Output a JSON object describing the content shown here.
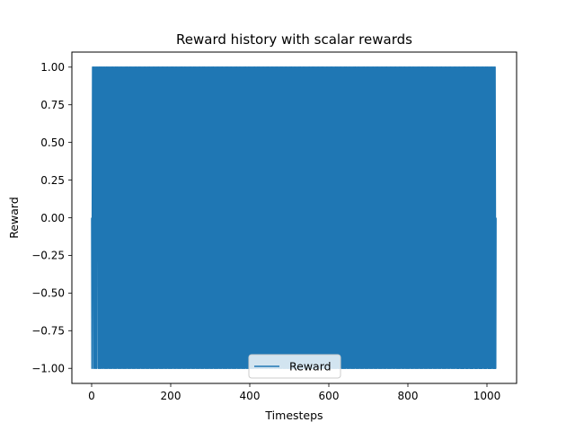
{
  "chart_data": {
    "type": "line",
    "title": "Reward history with scalar rewards",
    "xlabel": "Timesteps",
    "ylabel": "Reward",
    "xlim": [
      -50,
      1075
    ],
    "ylim": [
      -1.1,
      1.1
    ],
    "xticks": [
      0,
      200,
      400,
      600,
      800,
      1000
    ],
    "xtick_labels": [
      "0",
      "200",
      "400",
      "600",
      "800",
      "1000"
    ],
    "yticks": [
      -1.0,
      -0.75,
      -0.5,
      -0.25,
      0.0,
      0.25,
      0.5,
      0.75,
      1.0
    ],
    "ytick_labels": [
      "−1.00",
      "−0.75",
      "−0.50",
      "−0.25",
      "0.00",
      "0.25",
      "0.50",
      "0.75",
      "1.00"
    ],
    "grid": false,
    "legend": "lower center",
    "series": [
      {
        "name": "Reward",
        "color": "#1f77b4",
        "x_start": 0,
        "x_end": 1023,
        "values": [
          0,
          -1,
          0,
          1,
          0,
          1,
          -1,
          0,
          1,
          -1,
          0,
          1,
          0,
          -1,
          1,
          0,
          -1,
          1,
          0,
          0,
          1,
          -1,
          0,
          1,
          -1,
          1,
          0,
          -1,
          1,
          0,
          -1,
          1,
          0,
          1,
          -1,
          0,
          1,
          -1,
          0,
          1,
          1,
          -1,
          0,
          1,
          -1,
          0,
          1,
          -1,
          1,
          0,
          -1,
          1,
          0,
          1,
          -1,
          0,
          1,
          -1,
          0,
          1,
          -1,
          0,
          1,
          -1,
          1,
          0,
          -1,
          1,
          0,
          1,
          -1,
          0,
          1,
          -1,
          0,
          1,
          -1,
          1,
          0,
          -1,
          1,
          0,
          1,
          -1,
          0,
          1,
          -1,
          0,
          1,
          -1,
          0,
          1,
          -1,
          1,
          0,
          -1,
          1,
          0,
          1,
          -1,
          0,
          1,
          -1,
          0,
          1,
          -1,
          0,
          1,
          -1,
          1,
          0,
          -1,
          1,
          0,
          1,
          -1,
          0,
          1,
          -1,
          0,
          1,
          -1,
          1,
          0,
          -1,
          1,
          0,
          1,
          -1,
          0,
          1,
          -1,
          0,
          1,
          -1,
          0,
          1,
          -1,
          1,
          0,
          -1,
          1,
          0,
          1,
          -1,
          0,
          1,
          -1,
          0,
          1,
          -1,
          1,
          0,
          -1,
          1,
          0,
          1,
          -1,
          0,
          1,
          -1,
          0,
          1,
          -1,
          0,
          1,
          -1,
          1,
          0,
          -1,
          1,
          0,
          1,
          -1,
          0,
          1,
          -1,
          0,
          1,
          -1,
          1,
          0,
          -1,
          1,
          0,
          1,
          -1,
          0,
          1,
          -1,
          0,
          1,
          -1,
          0,
          1,
          -1,
          1,
          0,
          -1,
          1,
          0,
          1,
          -1,
          0,
          1,
          -1,
          0,
          1,
          -1,
          1,
          0,
          -1,
          1,
          0,
          1,
          -1,
          0,
          1,
          -1,
          0,
          1,
          -1,
          0,
          1,
          -1,
          1,
          0,
          -1,
          1,
          0,
          1,
          -1,
          0,
          1,
          -1,
          0,
          1,
          -1,
          1,
          0,
          -1,
          1,
          0,
          1,
          -1,
          0,
          1,
          -1,
          0,
          1,
          -1,
          0,
          1,
          -1,
          1,
          0,
          -1,
          1,
          0,
          1,
          -1,
          0,
          1,
          -1,
          0,
          1,
          -1,
          1,
          0,
          -1,
          1,
          0,
          1,
          -1,
          0,
          1,
          -1,
          0,
          1,
          -1,
          0,
          1,
          -1,
          1,
          0,
          -1,
          1,
          0,
          1,
          -1,
          0,
          1,
          -1,
          0,
          1,
          -1,
          1,
          0,
          -1,
          1,
          0,
          1,
          -1,
          0,
          1,
          -1,
          0,
          1,
          -1,
          0,
          1,
          -1,
          1,
          0,
          -1,
          1,
          0,
          1,
          -1,
          0,
          1,
          -1,
          0,
          1,
          -1,
          1,
          0,
          -1,
          1,
          0,
          1,
          -1,
          0,
          1,
          -1,
          0,
          1,
          -1,
          0,
          1,
          -1,
          1,
          0,
          -1,
          1,
          0,
          1,
          -1,
          0,
          1,
          -1,
          0,
          1,
          -1,
          1,
          0,
          -1,
          1,
          0,
          1,
          -1,
          0,
          1,
          -1,
          0,
          1,
          -1,
          0,
          1,
          -1,
          1,
          0,
          -1,
          1,
          0,
          1,
          -1,
          0,
          1,
          -1,
          0,
          1,
          -1,
          1,
          0,
          -1,
          1,
          0,
          1,
          -1,
          0,
          1,
          -1,
          0,
          1,
          -1,
          0,
          1,
          -1,
          1,
          0,
          -1,
          1,
          0,
          1,
          -1,
          0,
          1,
          -1,
          0,
          1,
          -1,
          1,
          0,
          -1,
          1,
          0,
          1,
          -1,
          0,
          1,
          -1,
          0,
          1,
          -1,
          0,
          1,
          -1,
          1,
          0,
          -1,
          1,
          0,
          1,
          -1,
          0,
          1,
          -1,
          0,
          1,
          -1,
          1,
          0,
          -1,
          1,
          0,
          1,
          -1,
          0,
          1,
          -1,
          0,
          1,
          -1,
          0,
          1,
          -1,
          1,
          0,
          -1,
          1,
          0,
          1,
          -1,
          0,
          1,
          -1,
          0,
          1,
          -1,
          1,
          0,
          -1,
          1,
          0,
          1,
          -1,
          0,
          1,
          -1,
          0,
          1,
          -1,
          0,
          1,
          -1,
          1,
          0,
          -1,
          1,
          0,
          1,
          -1,
          0,
          1,
          -1,
          0,
          1,
          -1,
          1,
          0,
          -1,
          1,
          0,
          1,
          -1,
          0,
          1,
          -1,
          0,
          1,
          -1,
          0,
          1,
          -1,
          1,
          0,
          -1,
          1,
          0,
          1,
          -1,
          0,
          1,
          -1,
          0,
          1,
          -1,
          1,
          0,
          -1,
          1,
          0,
          1,
          -1,
          0,
          1,
          -1,
          0,
          1,
          -1,
          0,
          1,
          -1,
          1,
          0,
          -1,
          1,
          0,
          1,
          -1,
          0,
          1,
          -1,
          0,
          1,
          -1,
          1,
          0,
          -1,
          1,
          0,
          1,
          -1,
          0,
          1,
          -1,
          0,
          1,
          -1,
          0,
          1,
          -1,
          1,
          0,
          -1,
          1,
          0,
          1,
          -1,
          0,
          1,
          -1,
          0,
          1,
          -1,
          1,
          0,
          -1,
          1,
          0,
          1,
          -1,
          0,
          1,
          -1,
          0,
          1,
          -1,
          0,
          1,
          -1,
          1,
          0,
          -1,
          1,
          0,
          1,
          -1,
          0,
          1,
          -1,
          0,
          1,
          -1,
          1,
          0,
          -1,
          1,
          0,
          1,
          -1,
          0,
          1,
          -1,
          0,
          1,
          -1,
          0,
          1,
          -1,
          1,
          0,
          -1,
          1,
          0,
          1,
          -1,
          0,
          1,
          -1,
          0,
          1,
          -1,
          1,
          0,
          -1,
          1,
          0,
          1,
          -1,
          0,
          1,
          -1,
          0,
          1,
          -1,
          0,
          1,
          -1,
          1,
          0,
          -1,
          1,
          0,
          1,
          -1,
          0,
          1,
          -1,
          0,
          1,
          -1,
          1,
          0,
          -1,
          1,
          0,
          1,
          -1,
          0,
          1,
          -1,
          0,
          1,
          -1,
          0,
          1,
          -1,
          1,
          0,
          -1,
          1,
          0,
          1,
          -1,
          0,
          1,
          -1,
          0,
          1,
          -1,
          1,
          0,
          -1,
          1,
          0,
          1,
          -1,
          0,
          1,
          -1,
          0,
          1,
          -1,
          0,
          1,
          -1,
          1,
          0,
          -1,
          1,
          0,
          1,
          -1,
          0,
          1,
          -1,
          0,
          1,
          -1,
          1,
          0,
          -1,
          1,
          0,
          1,
          -1,
          0,
          1,
          -1,
          0,
          1,
          -1,
          0,
          1,
          -1,
          1,
          0,
          -1,
          1,
          0,
          1,
          -1,
          0,
          1,
          -1,
          0,
          1,
          -1,
          1,
          0,
          -1,
          1,
          0,
          1,
          -1,
          0,
          1,
          -1,
          0,
          1,
          -1,
          0,
          1,
          -1,
          1,
          0,
          -1,
          1,
          0,
          1,
          -1,
          0,
          1,
          -1,
          0,
          1,
          -1,
          1,
          0,
          -1,
          1,
          0,
          1,
          -1,
          0,
          1,
          -1,
          0,
          1,
          -1,
          0,
          1,
          -1,
          1,
          0,
          -1,
          1,
          0,
          1,
          -1,
          0,
          1,
          -1,
          0,
          1,
          -1,
          1,
          0,
          -1,
          1,
          0,
          1,
          -1,
          0,
          1,
          -1,
          0,
          1,
          -1,
          0,
          1,
          -1,
          1,
          0,
          -1,
          1,
          0,
          1,
          -1,
          0,
          1,
          -1,
          0,
          1,
          -1,
          1,
          0,
          -1,
          1,
          0,
          1,
          -1,
          0,
          1,
          -1,
          0,
          1,
          -1,
          0,
          1,
          -1,
          1,
          0,
          -1,
          1,
          0,
          1,
          -1,
          0,
          1,
          -1,
          0,
          1,
          -1,
          1,
          0,
          -1,
          1,
          0,
          1,
          -1,
          0,
          1,
          -1,
          0,
          1,
          -1,
          0,
          1,
          -1,
          1,
          0,
          -1,
          1,
          0,
          1,
          -1,
          0,
          1,
          -1,
          0,
          1,
          -1,
          1,
          0,
          -1,
          1,
          0,
          1,
          -1,
          0,
          1,
          -1,
          0,
          1,
          -1,
          0,
          1,
          -1,
          1,
          0,
          -1,
          1,
          0,
          1,
          -1,
          0,
          1,
          -1,
          0,
          1,
          -1,
          1,
          0,
          -1,
          1,
          0,
          1,
          -1,
          0,
          1,
          -1,
          0,
          1,
          -1,
          0,
          1,
          -1,
          1,
          0,
          -1,
          1,
          0,
          1,
          -1,
          0,
          1,
          -1,
          0,
          1,
          -1,
          1,
          0,
          -1,
          1,
          0,
          1,
          -1,
          0,
          1,
          -1,
          0,
          1,
          -1,
          0,
          1,
          -1,
          1,
          0,
          -1,
          1,
          0,
          1,
          -1,
          0,
          1,
          -1,
          0,
          1,
          -1,
          1,
          0,
          -1,
          1,
          0,
          1,
          -1,
          0,
          1,
          -1,
          0,
          1,
          -1,
          0,
          1,
          -1,
          1,
          0,
          -1,
          1,
          0,
          1,
          -1,
          0,
          1,
          -1,
          0,
          1,
          -1,
          1,
          0,
          -1,
          1,
          0,
          1,
          -1,
          0,
          1,
          -1,
          0,
          1,
          -1,
          0,
          1,
          -1,
          1,
          0,
          -1,
          1,
          0,
          1,
          -1,
          0,
          1,
          -1,
          0,
          1,
          -1,
          1,
          0,
          -1,
          1,
          0,
          1,
          -1,
          0,
          1,
          -1,
          0,
          1,
          -1,
          0,
          1,
          -1,
          1,
          0,
          -1,
          1,
          0,
          1,
          -1,
          0,
          1,
          -1,
          0,
          1,
          -1,
          1,
          0,
          -1,
          1,
          0,
          1,
          -1,
          0,
          1,
          -1,
          0,
          1,
          -1,
          0,
          1,
          -1,
          1,
          0,
          -1,
          1,
          0,
          1,
          -1,
          0,
          1,
          -1,
          0,
          1,
          -1,
          1,
          0,
          -1,
          1,
          0,
          1,
          -1,
          0,
          1,
          -1,
          0,
          1,
          -1,
          0,
          1,
          -1,
          1,
          0,
          -1,
          1,
          0,
          1,
          -1,
          0,
          1,
          -1,
          0,
          1,
          -1,
          1,
          0,
          -1,
          1,
          0,
          1,
          -1,
          0,
          1,
          -1,
          0,
          1,
          -1,
          0,
          1,
          -1,
          1,
          0,
          -1,
          1,
          0,
          1,
          -1,
          0,
          1,
          -1,
          0,
          1,
          -1,
          1,
          0,
          -1,
          1,
          0,
          1,
          -1,
          0,
          1,
          -1,
          0,
          1,
          -1,
          0,
          1,
          -1,
          1,
          0,
          -1,
          1,
          0,
          1,
          -1,
          0,
          1,
          -1,
          0,
          1,
          -1,
          1,
          0,
          -1,
          1,
          0,
          1,
          -1,
          0,
          1,
          -1,
          0,
          1,
          -1,
          0,
          1,
          -1,
          1,
          0,
          -1,
          1,
          0,
          1,
          -1,
          0,
          1,
          -1,
          0,
          1,
          -1,
          1,
          0,
          -1,
          1,
          0,
          1,
          -1,
          0,
          1,
          -1,
          0,
          1,
          -1,
          0,
          1,
          -1,
          1,
          0,
          -1,
          1,
          0,
          1,
          -1,
          0,
          1,
          -1,
          0,
          1,
          -1,
          1,
          0,
          -1,
          1,
          0,
          1,
          -1,
          0,
          1,
          -1,
          0,
          1,
          -1,
          0,
          1,
          -1,
          1,
          0,
          -1,
          1,
          0,
          1,
          -1,
          0,
          1,
          -1,
          0,
          1,
          -1,
          1,
          0,
          -1,
          0
        ]
      }
    ]
  }
}
